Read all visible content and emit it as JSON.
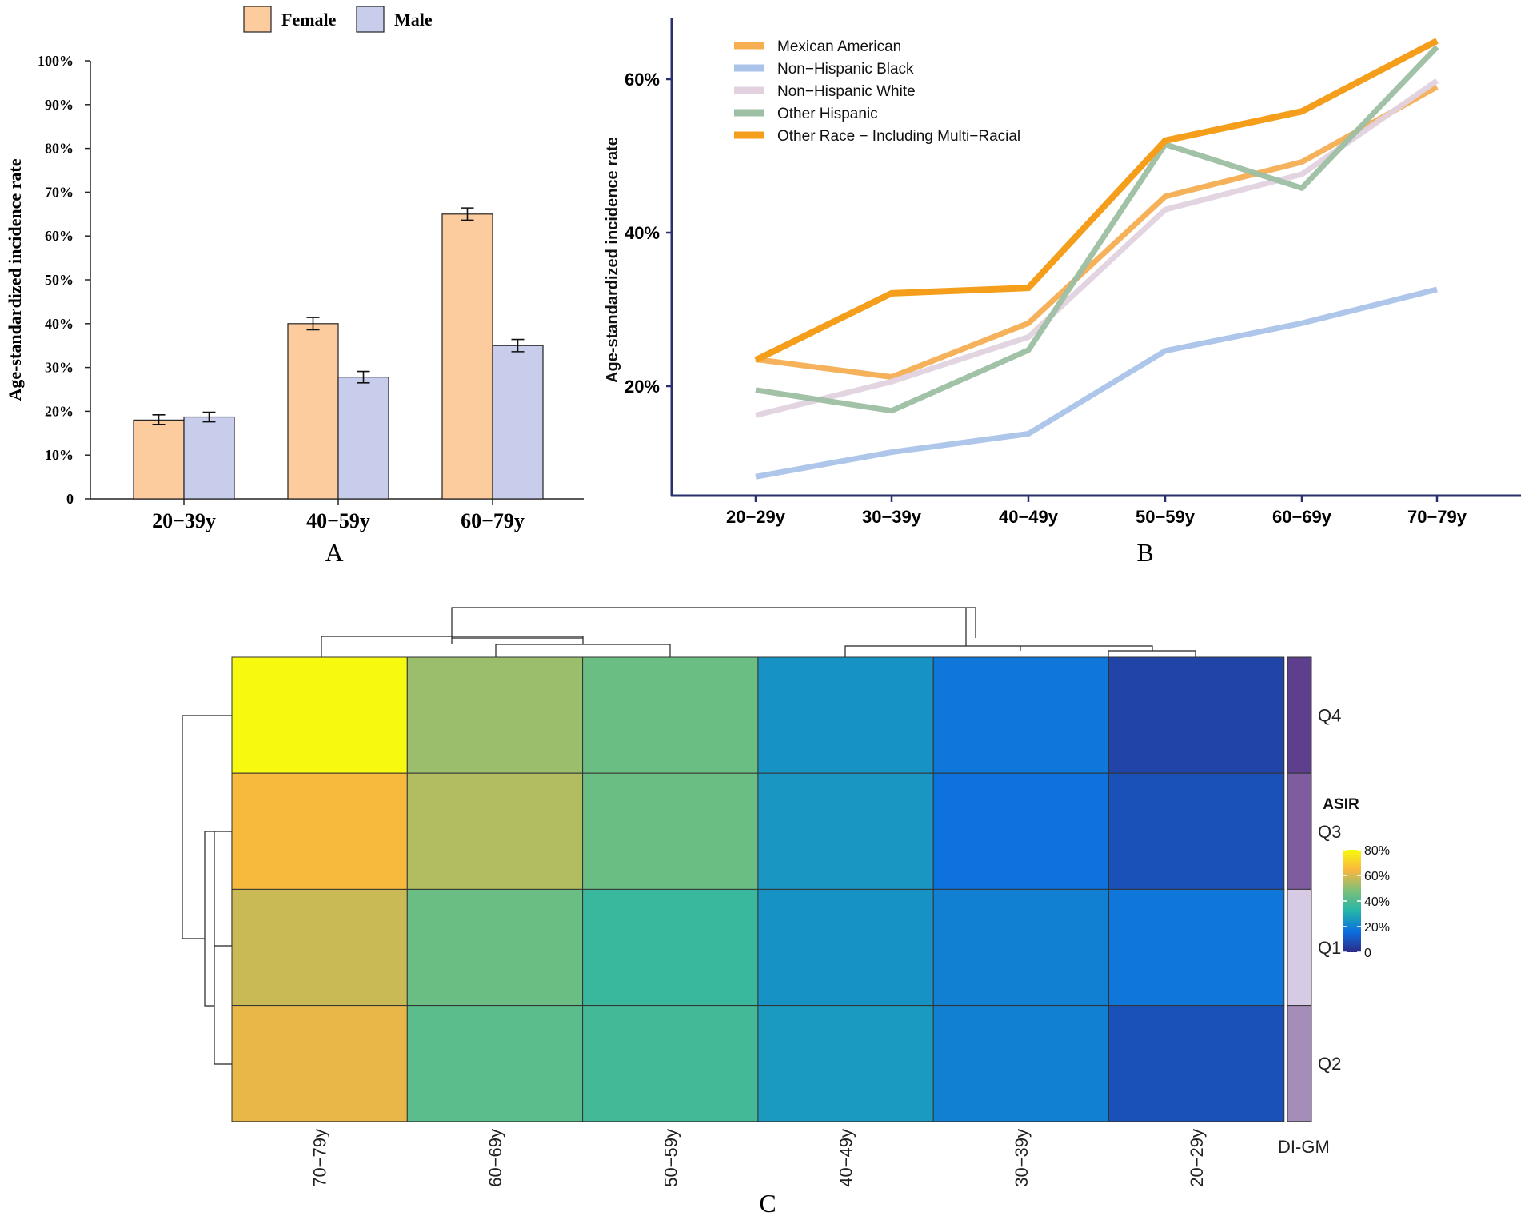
{
  "chart_data": [
    {
      "panel": "A",
      "type": "bar",
      "label": "A",
      "categories": [
        "20−39y",
        "40−59y",
        "60−79y"
      ],
      "series": [
        {
          "name": "Female",
          "color": "#FCCB9E",
          "values": [
            18.0,
            40.0,
            65.0
          ],
          "err_low": [
            17.0,
            38.6,
            63.6
          ],
          "err_high": [
            19.2,
            41.4,
            66.4
          ]
        },
        {
          "name": "Male",
          "color": "#C7CDEA",
          "values": [
            18.7,
            27.8,
            35.0
          ],
          "err_low": [
            17.6,
            26.5,
            33.6
          ],
          "err_high": [
            19.8,
            29.1,
            36.4
          ]
        }
      ],
      "ylabel": "Age-standardized incidence rate",
      "ylim": [
        0,
        100
      ],
      "yticks": [
        "0",
        "10%",
        "20%",
        "30%",
        "40%",
        "50%",
        "60%",
        "70%",
        "80%",
        "90%",
        "100%"
      ]
    },
    {
      "panel": "B",
      "type": "line",
      "label": "B",
      "categories": [
        "20−29y",
        "30−39y",
        "40−49y",
        "50−59y",
        "60−69y",
        "70−79y"
      ],
      "series": [
        {
          "name": "Mexican American",
          "color": "#F5AE52",
          "values": [
            23.5,
            21.2,
            28.2,
            44.7,
            49.2,
            59.0
          ]
        },
        {
          "name": "Non−Hispanic Black",
          "color": "#A9C3E9",
          "values": [
            8.2,
            11.4,
            13.8,
            24.6,
            28.2,
            32.6
          ]
        },
        {
          "name": "Non−Hispanic White",
          "color": "#E2D2DF",
          "values": [
            16.2,
            20.6,
            26.4,
            43.0,
            47.6,
            59.8
          ]
        },
        {
          "name": "Other Hispanic",
          "color": "#9DBFA3",
          "values": [
            19.5,
            16.8,
            24.7,
            51.5,
            45.8,
            64.2
          ]
        },
        {
          "name": "Other Race − Including Multi−Racial",
          "color": "#F59E1B",
          "values": [
            23.4,
            32.1,
            32.8,
            52.0,
            55.8,
            65.0
          ]
        }
      ],
      "ylabel": "Age-standardized incidence rate",
      "ylim": [
        7,
        67
      ],
      "yticks": [
        "20%",
        "40%",
        "60%"
      ]
    },
    {
      "panel": "C",
      "type": "heatmap",
      "label": "C",
      "columns": [
        "70−79y",
        "60−69y",
        "50−59y",
        "40−49y",
        "30−39y",
        "20−29y"
      ],
      "rows": [
        "Q4",
        "Q3",
        "Q1",
        "Q2"
      ],
      "row_annotation_colors": [
        "#5D3F8E",
        "#7E5C9F",
        "#D6CAE4",
        "#A48DB8"
      ],
      "values": [
        [
          80,
          52,
          45,
          24,
          18,
          6
        ],
        [
          65,
          55,
          45,
          25,
          17,
          9
        ],
        [
          58,
          45,
          36,
          24,
          20,
          18
        ],
        [
          62,
          42,
          38,
          26,
          20,
          9
        ]
      ],
      "annotation_label": "DI-GM",
      "legend_title": "ASIR",
      "legend_ticks": [
        "80%",
        "60%",
        "40%",
        "20%",
        "0"
      ],
      "scale": {
        "min": 0,
        "max": 80,
        "colors": [
          "#2E2B86",
          "#0B6EE0",
          "#23B5AA",
          "#7CC07A",
          "#F8B640",
          "#F7F90E"
        ]
      }
    }
  ]
}
